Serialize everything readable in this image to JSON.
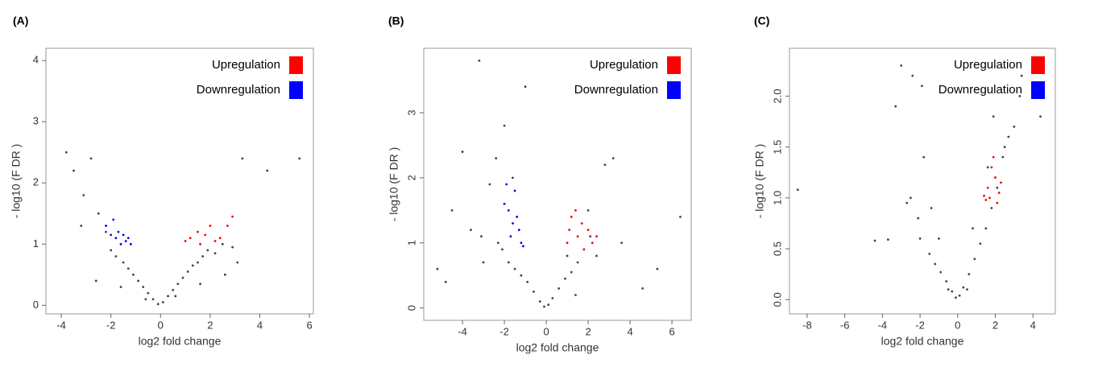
{
  "chart_data": [
    {
      "type": "scatter",
      "title": "(A)",
      "x_label": "log2 fold change",
      "y_label": "- log10 (F DR )",
      "xlim": [
        -4.62,
        6.16
      ],
      "ylim": [
        -0.14,
        4.2
      ],
      "xticks": [
        -4,
        -2,
        0,
        2,
        4,
        6
      ],
      "yticks": [
        0,
        1,
        2,
        3,
        4
      ],
      "series": [
        {
          "color": "#444444",
          "x": [
            -3.8,
            -3.5,
            -3.1,
            -2.8,
            -2.5,
            -2.2,
            -2.0,
            -1.8,
            -1.5,
            -1.3,
            -1.1,
            -0.9,
            -0.7,
            -0.5,
            -0.3,
            -0.1,
            0.1,
            0.3,
            0.5,
            0.7,
            0.9,
            1.1,
            1.3,
            1.5,
            1.7,
            1.9,
            2.2,
            2.5,
            2.9,
            3.3,
            4.3,
            5.6,
            -2.6,
            -1.6,
            -0.6,
            0.6,
            1.6,
            2.6,
            -3.2,
            3.1
          ],
          "values": [
            2.5,
            2.2,
            1.8,
            2.4,
            1.5,
            1.2,
            0.9,
            0.8,
            0.7,
            0.6,
            0.5,
            0.4,
            0.3,
            0.2,
            0.1,
            0.02,
            0.05,
            0.15,
            0.25,
            0.35,
            0.45,
            0.55,
            0.65,
            0.7,
            0.8,
            0.9,
            0.85,
            1.0,
            0.95,
            2.4,
            2.2,
            2.4,
            0.4,
            0.3,
            0.1,
            0.15,
            0.35,
            0.5,
            1.3,
            0.7
          ]
        },
        {
          "name": "Upregulation",
          "color": "#ff0000",
          "x": [
            1.0,
            1.2,
            1.5,
            1.8,
            2.0,
            2.2,
            2.4,
            2.7,
            2.9,
            1.6
          ],
          "values": [
            1.05,
            1.1,
            1.2,
            1.15,
            1.3,
            1.05,
            1.1,
            1.3,
            1.45,
            1.0
          ]
        },
        {
          "name": "Downregulation",
          "color": "#0000ff",
          "x": [
            -2.2,
            -2.0,
            -1.8,
            -1.7,
            -1.5,
            -1.4,
            -1.2,
            -1.9,
            -1.6,
            -1.3
          ],
          "values": [
            1.3,
            1.15,
            1.1,
            1.2,
            1.15,
            1.05,
            1.0,
            1.4,
            1.0,
            1.1
          ]
        }
      ]
    },
    {
      "type": "scatter",
      "title": "(B)",
      "x_label": "log2 fold change",
      "y_label": "- log10 (F DR )",
      "xlim": [
        -5.85,
        6.92
      ],
      "ylim": [
        -0.19,
        3.99
      ],
      "xticks": [
        -4,
        -2,
        0,
        2,
        4,
        6
      ],
      "yticks": [
        0,
        1,
        2,
        3
      ],
      "series": [
        {
          "color": "#444444",
          "x": [
            -5.2,
            -4.5,
            -4.0,
            -3.6,
            -3.2,
            -3.0,
            -2.7,
            -2.4,
            -2.1,
            -1.8,
            -1.5,
            -1.2,
            -0.9,
            -0.6,
            -0.3,
            -0.1,
            0.1,
            0.3,
            0.6,
            0.9,
            1.2,
            1.5,
            1.8,
            2.1,
            2.4,
            2.8,
            3.2,
            3.6,
            4.6,
            6.4,
            -3.1,
            -2.0,
            -1.0,
            1.0,
            2.0,
            -1.6,
            -4.8,
            5.3,
            -2.3,
            1.4
          ],
          "values": [
            0.6,
            1.5,
            2.4,
            1.2,
            3.8,
            0.7,
            1.9,
            2.3,
            0.9,
            0.7,
            0.6,
            0.5,
            0.4,
            0.25,
            0.1,
            0.02,
            0.05,
            0.15,
            0.3,
            0.45,
            0.55,
            0.7,
            0.9,
            1.1,
            0.8,
            2.2,
            2.3,
            1.0,
            0.3,
            1.4,
            1.1,
            2.8,
            3.4,
            0.8,
            1.5,
            2.0,
            0.4,
            0.6,
            1.0,
            0.2
          ]
        },
        {
          "name": "Upregulation",
          "color": "#ff0000",
          "x": [
            1.0,
            1.2,
            1.5,
            1.7,
            2.0,
            2.2,
            1.4,
            1.8,
            2.4,
            1.1
          ],
          "values": [
            1.0,
            1.4,
            1.1,
            1.3,
            1.2,
            1.0,
            1.5,
            0.9,
            1.1,
            1.2
          ]
        },
        {
          "name": "Downregulation",
          "color": "#0000ff",
          "x": [
            -2.0,
            -1.8,
            -1.6,
            -1.5,
            -1.3,
            -1.2,
            -1.7,
            -1.4,
            -1.9,
            -1.1
          ],
          "values": [
            1.6,
            1.5,
            1.3,
            1.8,
            1.2,
            1.0,
            1.1,
            1.4,
            1.9,
            0.95
          ]
        }
      ]
    },
    {
      "type": "scatter",
      "title": "(C)",
      "x_label": "log2 fold change",
      "y_label": "- log10 (F DR )",
      "xlim": [
        -8.94,
        5.19
      ],
      "ylim": [
        -0.14,
        2.47
      ],
      "xticks": [
        -8,
        -6,
        -4,
        -2,
        0,
        2,
        4
      ],
      "yticks": [
        {
          "value": 0,
          "label": "0.0"
        },
        0.5,
        {
          "value": 1,
          "label": "1.0"
        },
        1.5,
        {
          "value": 2,
          "label": "2.0"
        }
      ],
      "series": [
        {
          "color": "#444444",
          "x": [
            -8.5,
            -4.4,
            -3.7,
            -3.0,
            -2.7,
            -2.4,
            -2.1,
            -1.8,
            -1.5,
            -1.2,
            -0.9,
            -0.6,
            -0.3,
            -0.1,
            0.1,
            0.3,
            0.6,
            0.9,
            1.2,
            1.5,
            1.8,
            2.1,
            2.4,
            2.7,
            3.0,
            3.4,
            4.4,
            -2.5,
            -1.9,
            -2.0,
            -1.0,
            0.8,
            1.6,
            2.5,
            3.3,
            -3.3,
            -1.4,
            1.9,
            -0.5,
            0.5
          ],
          "values": [
            1.08,
            0.58,
            0.59,
            2.3,
            0.95,
            2.2,
            0.8,
            1.4,
            0.45,
            0.35,
            0.27,
            0.18,
            0.08,
            0.02,
            0.04,
            0.12,
            0.25,
            0.4,
            0.55,
            0.7,
            0.9,
            1.1,
            1.4,
            1.6,
            1.7,
            2.2,
            1.8,
            1.0,
            2.1,
            0.6,
            0.6,
            0.7,
            1.3,
            1.5,
            2.0,
            1.9,
            0.9,
            1.8,
            0.1,
            0.1
          ]
        },
        {
          "name": "Upregulation",
          "color": "#ff0000",
          "x": [
            1.6,
            1.8,
            2.0,
            2.2,
            1.7,
            1.9,
            2.1,
            1.5,
            2.3,
            1.4
          ],
          "values": [
            1.1,
            1.3,
            1.2,
            1.05,
            1.0,
            1.4,
            0.95,
            0.98,
            1.15,
            1.02
          ]
        },
        {
          "name": "Downregulation",
          "color": "#0000ff",
          "x": [],
          "values": []
        }
      ]
    }
  ]
}
